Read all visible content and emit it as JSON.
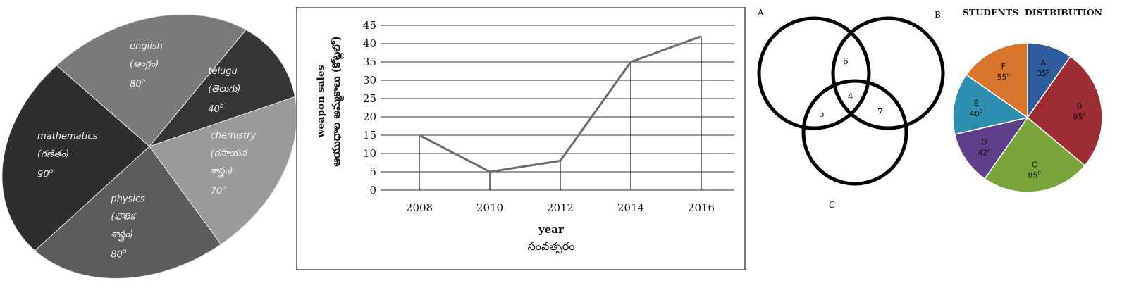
{
  "chart_data": [
    {
      "type": "pie",
      "title": "",
      "slices": [
        {
          "label": "english",
          "sub": "(ఆంగ్లం)",
          "sub2": "",
          "value": 80,
          "value_label": "80",
          "color": "#7a7a7a"
        },
        {
          "label": "telugu",
          "sub": "(తెలుగు)",
          "sub2": "",
          "value": 40,
          "value_label": "40",
          "color": "#353535"
        },
        {
          "label": "chemistry",
          "sub": "(రసాయన",
          "sub2": "శాస్త్రం)",
          "value": 70,
          "value_label": "70",
          "color": "#9a9a9a"
        },
        {
          "label": "physics",
          "sub": "(భౌతిక",
          "sub2": "శాస్త్రం)",
          "value": 80,
          "value_label": "80",
          "color": "#5c5c5c"
        },
        {
          "label": "mathematics",
          "sub": "(గణితం)",
          "sub2": "",
          "value": 90,
          "value_label": "90",
          "color": "#2e2e2e"
        }
      ],
      "degree_symbol": "o"
    },
    {
      "type": "line",
      "x": [
        "2008",
        "2010",
        "2012",
        "2014",
        "2016"
      ],
      "series": [
        {
          "values": [
            15,
            5,
            8,
            35,
            42
          ],
          "color": "#6b6b6b"
        }
      ],
      "ylim": [
        0,
        45
      ],
      "yticks": [
        "0",
        "5",
        "10",
        "15",
        "20",
        "25",
        "30",
        "35",
        "40",
        "45"
      ],
      "xlabel": "year",
      "xlabel2": "సంవత్సరం",
      "ylabel": "weapon sales",
      "ylabel2": "ఆయుధాల అమ్మకాలు (కోట్లలో)",
      "grid": true
    },
    {
      "type": "venn",
      "sets": [
        "A",
        "B",
        "C"
      ],
      "regions": {
        "AB": "6",
        "ABC": "4",
        "AC": "5",
        "BC": "7"
      }
    },
    {
      "type": "pie",
      "title": "STUDENTS  DISTRIBUTION",
      "slices": [
        {
          "label": "A",
          "value": 35,
          "value_label": "35",
          "color": "#2f5c9c"
        },
        {
          "label": "B",
          "value": 95,
          "value_label": "95",
          "color": "#9c2e33"
        },
        {
          "label": "C",
          "value": 85,
          "value_label": "85",
          "color": "#79a43c"
        },
        {
          "label": "D",
          "value": 42,
          "value_label": "42",
          "color": "#5f3f8a"
        },
        {
          "label": "E",
          "value": 48,
          "value_label": "48",
          "color": "#2e8fb0"
        },
        {
          "label": "F",
          "value": 55,
          "value_label": "55",
          "color": "#d8762e"
        }
      ],
      "degree_symbol": "0"
    }
  ]
}
